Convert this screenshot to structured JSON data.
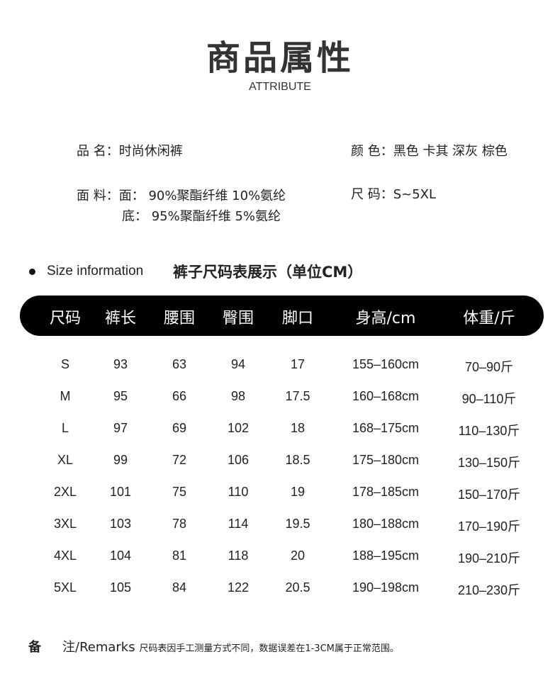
{
  "header": {
    "title": "商品属性",
    "subtitle": "ATTRIBUTE"
  },
  "attributes": {
    "name": "品 名：时尚休闲裤",
    "color": "颜 色：黑色 卡其 深灰 棕色",
    "fabric_line1": "面 料：面： 90%聚酯纤维 10%氨纶",
    "fabric_line2": "底： 95%聚酯纤维  5%氨纶",
    "size": "尺 码：S~5XL"
  },
  "size_section": {
    "label": "Size information",
    "title": "裤子尺码表展示（单位CM）"
  },
  "table": {
    "columns": [
      "尺码",
      "裤长",
      "腰围",
      "臀围",
      "脚口",
      "身高/cm",
      "体重/斤"
    ],
    "rows": [
      [
        "S",
        "93",
        "63",
        "94",
        "17",
        "155–160cm",
        "70–90斤"
      ],
      [
        "M",
        "95",
        "66",
        "98",
        "17.5",
        "160–168cm",
        "90–110斤"
      ],
      [
        "L",
        "97",
        "69",
        "102",
        "18",
        "168–175cm",
        "110–130斤"
      ],
      [
        "XL",
        "99",
        "72",
        "106",
        "18.5",
        "175–180cm",
        "130–150斤"
      ],
      [
        "2XL",
        "101",
        "75",
        "110",
        "19",
        "178–185cm",
        "150–170斤"
      ],
      [
        "3XL",
        "103",
        "78",
        "114",
        "19.5",
        "180–188cm",
        "170–190斤"
      ],
      [
        "4XL",
        "104",
        "81",
        "118",
        "20",
        "188–195cm",
        "190–210斤"
      ],
      [
        "5XL",
        "105",
        "84",
        "122",
        "20.5",
        "190–198cm",
        "210–230斤"
      ]
    ]
  },
  "remarks": {
    "label_a": "备",
    "label_b": "注/Remarks",
    "text": "尺码表因手工测量方式不同，数据误差在1-3CM属于正常范围。"
  }
}
